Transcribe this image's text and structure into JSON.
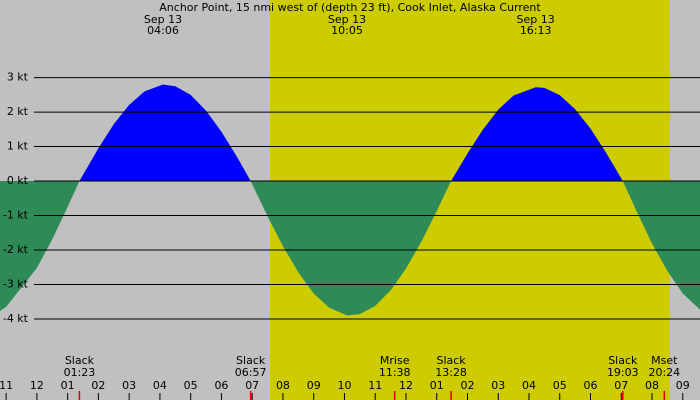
{
  "chart_data": {
    "type": "area",
    "title": "Anchor Point, 15 nmi west of (depth 23 ft), Cook Inlet, Alaska Current",
    "x": [
      -1.2,
      -1,
      0,
      0.5,
      1,
      1.383,
      2,
      2.5,
      3,
      3.5,
      4.1,
      4.5,
      5,
      5.5,
      6,
      6.5,
      6.95,
      7.5,
      8,
      8.5,
      9,
      9.5,
      10.083,
      10.5,
      11,
      11.5,
      12,
      12.5,
      13,
      13.467,
      14,
      14.5,
      15,
      15.5,
      16.217,
      16.5,
      17,
      17.5,
      18,
      18.5,
      19.05,
      19.5,
      20,
      20.5,
      21,
      21.56
    ],
    "values": [
      -3.77,
      -3.65,
      -2.52,
      -1.69,
      -0.75,
      0,
      0.95,
      1.65,
      2.21,
      2.6,
      2.8,
      2.75,
      2.5,
      2.04,
      1.43,
      0.71,
      0,
      -1.02,
      -1.89,
      -2.65,
      -3.26,
      -3.67,
      -3.9,
      -3.86,
      -3.62,
      -3.17,
      -2.54,
      -1.76,
      -0.87,
      0,
      0.8,
      1.49,
      2.07,
      2.48,
      2.72,
      2.7,
      2.49,
      2.08,
      1.52,
      0.83,
      0,
      -0.88,
      -1.81,
      -2.61,
      -3.26,
      -3.73
    ],
    "ebb_color": "#0000ff",
    "flood_color": "#2e8b57",
    "night_color": "#c0c0c0",
    "day_color": "#cccc00",
    "daylight_hours": [
      7.58,
      20.58
    ],
    "xlim": [
      -1.2,
      21.56
    ],
    "ylim": [
      -6.35,
      5.25
    ],
    "yticks": [
      {
        "value": 3,
        "label": "3 kt"
      },
      {
        "value": 2,
        "label": "2 kt"
      },
      {
        "value": 1,
        "label": "1 kt"
      },
      {
        "value": 0,
        "label": "0 kt"
      },
      {
        "value": -1,
        "label": "-1 kt"
      },
      {
        "value": -2,
        "label": "-2 kt"
      },
      {
        "value": -3,
        "label": "-3 kt"
      },
      {
        "value": -4,
        "label": "-4 kt"
      }
    ],
    "xticks": [
      {
        "value": -1,
        "label": "11"
      },
      {
        "value": 0,
        "label": "12"
      },
      {
        "value": 1,
        "label": "01"
      },
      {
        "value": 2,
        "label": "02"
      },
      {
        "value": 3,
        "label": "03"
      },
      {
        "value": 4,
        "label": "04"
      },
      {
        "value": 5,
        "label": "05"
      },
      {
        "value": 6,
        "label": "06"
      },
      {
        "value": 7,
        "label": "07"
      },
      {
        "value": 8,
        "label": "08"
      },
      {
        "value": 9,
        "label": "09"
      },
      {
        "value": 10,
        "label": "10"
      },
      {
        "value": 11,
        "label": "11"
      },
      {
        "value": 12,
        "label": "12"
      },
      {
        "value": 13,
        "label": "01"
      },
      {
        "value": 14,
        "label": "02"
      },
      {
        "value": 15,
        "label": "03"
      },
      {
        "value": 16,
        "label": "04"
      },
      {
        "value": 17,
        "label": "05"
      },
      {
        "value": 18,
        "label": "06"
      },
      {
        "value": 19,
        "label": "07"
      },
      {
        "value": 20,
        "label": "08"
      },
      {
        "value": 21,
        "label": "09"
      }
    ],
    "peaks": [
      {
        "date": "Sep 13",
        "time": "04:06",
        "value": 4.1
      },
      {
        "date": "Sep 13",
        "time": "10:05",
        "value": 10.083
      },
      {
        "date": "Sep 13",
        "time": "16:13",
        "value": 16.217
      }
    ],
    "events": [
      {
        "name": "Slack",
        "time": "01:23",
        "value": 1.383
      },
      {
        "name": "Slack",
        "time": "06:57",
        "value": 6.95
      },
      {
        "name": "Mrise",
        "time": "11:38",
        "value": 11.633
      },
      {
        "name": "Slack",
        "time": "13:28",
        "value": 13.467
      },
      {
        "name": "Slack",
        "time": "19:03",
        "value": 19.05
      },
      {
        "name": "Mset",
        "time": "20:24",
        "value": 20.4
      }
    ]
  }
}
